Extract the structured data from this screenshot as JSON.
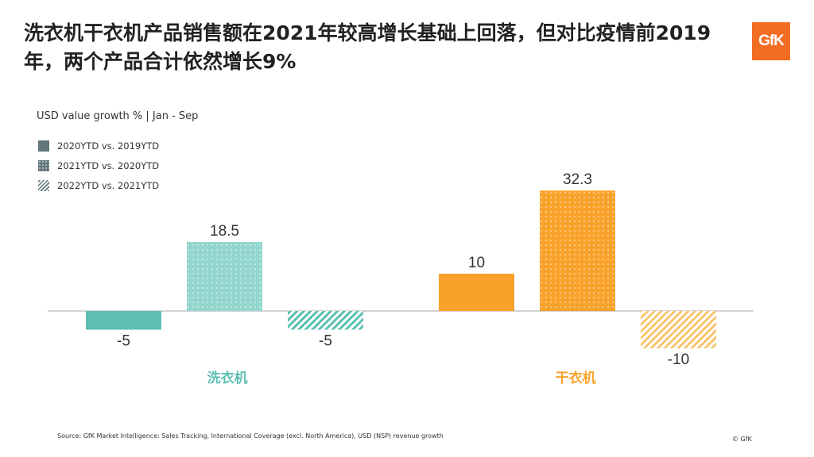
{
  "title": "洗衣机干衣机产品销售额在2021年较高增长基础上回落，但对比疫情前2019年，两个产品合计依然增长9%",
  "logo_text": "GfK",
  "footer": {
    "source": "Source: GfK Market Intelligence: Sales Tracking, International Coverage (excl. North America), USD (NSP) revenue growth",
    "copyright": "© GfK"
  },
  "colors": {
    "washer": "#5dbfb3",
    "dryer": "#f9a22b",
    "legend": "#62767b",
    "axis": "#aaaaaa"
  },
  "chart_data": {
    "type": "bar",
    "subtitle": "USD value growth % | Jan - Sep",
    "categories": [
      "洗衣机",
      "干衣机"
    ],
    "series": [
      {
        "name": "2020YTD vs. 2019YTD",
        "pattern": "solid",
        "values": [
          -5,
          10
        ]
      },
      {
        "name": "2021YTD vs. 2020YTD",
        "pattern": "dots",
        "values": [
          18.5,
          32.3
        ]
      },
      {
        "name": "2022YTD vs. 2021YTD",
        "pattern": "hatch",
        "values": [
          -5,
          -10
        ]
      }
    ],
    "data_labels": [
      [
        "-5",
        "10"
      ],
      [
        "18.5",
        "32.3"
      ],
      [
        "-5",
        "-10"
      ]
    ],
    "ylim": [
      -10,
      32.3
    ],
    "grid": false,
    "legend_position": "top-left"
  }
}
